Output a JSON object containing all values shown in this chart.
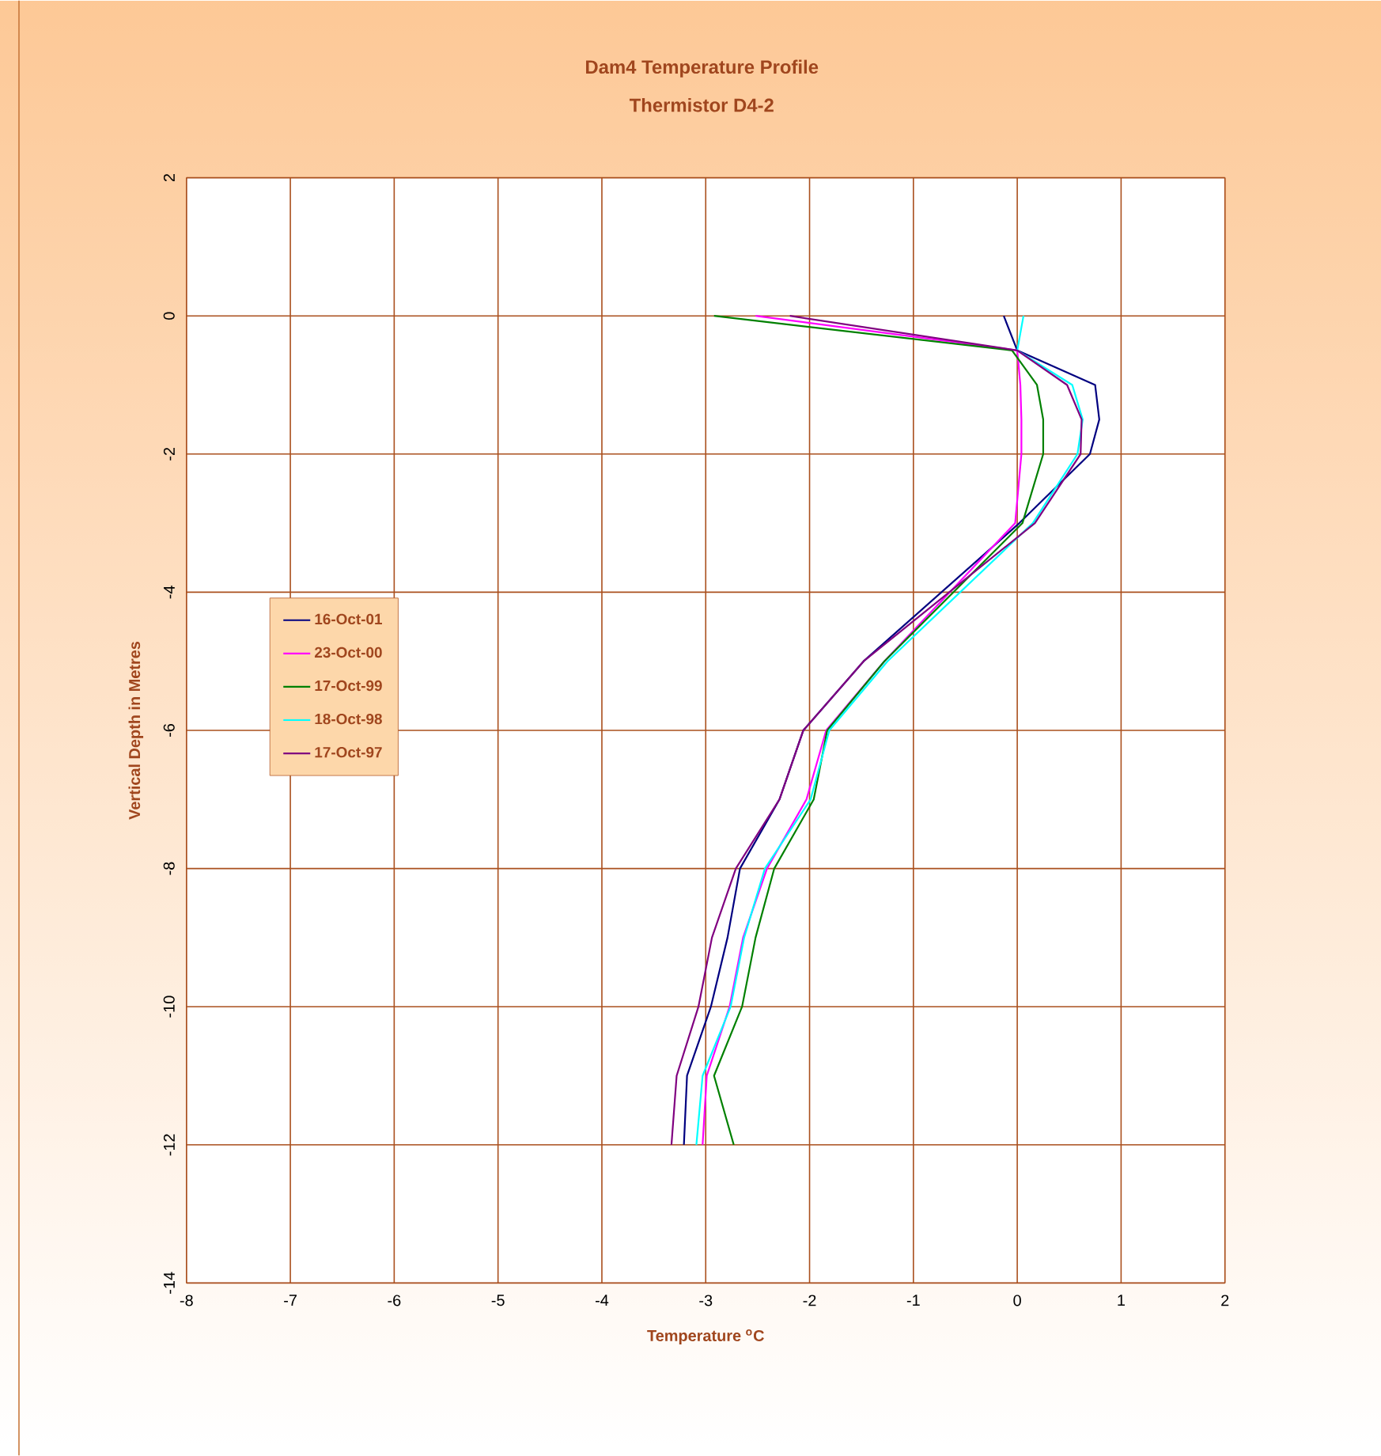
{
  "chart_data": {
    "type": "line",
    "title": "Dam4 Temperature Profile",
    "subtitle": "Thermistor D4-2",
    "xlabel": "Temperature $^{o}$C",
    "ylabel": "Vertical Depth in Metres",
    "xlim": [
      -8,
      2
    ],
    "ylim": [
      -14,
      2
    ],
    "xticks": [
      -8,
      -7,
      -6,
      -5,
      -4,
      -3,
      -2,
      -1,
      0,
      1,
      2
    ],
    "yticks": [
      -14,
      -12,
      -10,
      -8,
      -6,
      -4,
      -2,
      0,
      2
    ],
    "grid": true,
    "legend": "left",
    "marker": "none",
    "line_style": "solid",
    "series": [
      {
        "name": "16-Oct-01",
        "color": "#000080",
        "x": [
          -0.13,
          0,
          0.75,
          0.79,
          0.7,
          0.02,
          -1.48,
          -2.06,
          -2.29,
          -2.67,
          -2.79,
          -2.95,
          -3.18,
          -3.21
        ],
        "values": [
          0,
          -0.5,
          -1,
          -1.5,
          -2,
          -3,
          -5,
          -6,
          -7,
          -8,
          -9,
          -10,
          -11,
          -12
        ]
      },
      {
        "name": "23-Oct-00",
        "color": "#ff00ff",
        "x": [
          -2.52,
          0,
          0.03,
          0.04,
          0.04,
          -0.02,
          -1.28,
          -1.84,
          -2.03,
          -2.41,
          -2.64,
          -2.77,
          -2.99,
          -3.03
        ],
        "values": [
          0,
          -0.5,
          -1,
          -1.5,
          -2,
          -3,
          -5,
          -6,
          -7,
          -8,
          -9,
          -10,
          -11,
          -12
        ]
      },
      {
        "name": "17-Oct-99",
        "color": "#008000",
        "x": [
          -2.92,
          -0.05,
          0.19,
          0.25,
          0.25,
          0.05,
          -1.28,
          -1.83,
          -1.96,
          -2.34,
          -2.52,
          -2.65,
          -2.92,
          -2.73
        ],
        "values": [
          0,
          -0.5,
          -1,
          -1.5,
          -2,
          -3,
          -5,
          -6,
          -7,
          -8,
          -9,
          -10,
          -11,
          -12
        ]
      },
      {
        "name": "18-Oct-98",
        "color": "#00ffff",
        "x": [
          0.06,
          0,
          0.53,
          0.63,
          0.58,
          0.15,
          -1.25,
          -1.81,
          -1.99,
          -2.43,
          -2.63,
          -2.76,
          -3.03,
          -3.09
        ],
        "values": [
          0,
          -0.5,
          -1,
          -1.5,
          -2,
          -3,
          -5,
          -6,
          -7,
          -8,
          -9,
          -10,
          -11,
          -12
        ]
      },
      {
        "name": "17-Oct-97",
        "color": "#800080",
        "x": [
          -2.19,
          0,
          0.48,
          0.62,
          0.61,
          0.17,
          -1.48,
          -2.06,
          -2.29,
          -2.71,
          -2.94,
          -3.07,
          -3.28,
          -3.33
        ],
        "values": [
          0,
          -0.5,
          -1,
          -1.5,
          -2,
          -3,
          -5,
          -6,
          -7,
          -8,
          -9,
          -10,
          -11,
          -12
        ]
      }
    ]
  }
}
